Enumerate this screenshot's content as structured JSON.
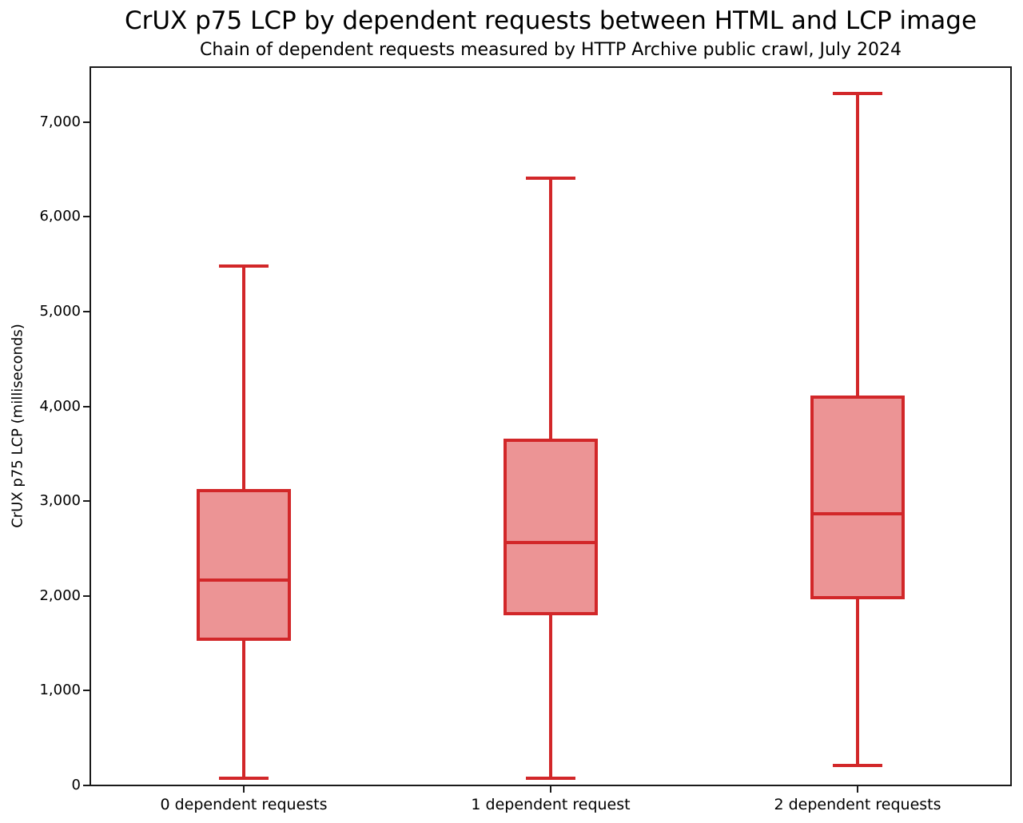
{
  "chart_data": {
    "type": "boxplot",
    "title": "CrUX p75 LCP by dependent requests between HTML and LCP image",
    "subtitle": "Chain of dependent requests measured by HTTP Archive public crawl, July 2024",
    "xlabel": "",
    "ylabel": "CrUX p75 LCP (milliseconds)",
    "unit": "milliseconds",
    "categories": [
      "0 dependent requests",
      "1 dependent request",
      "2 dependent requests"
    ],
    "series": [
      {
        "name": "0 dependent requests",
        "whisker_low": 80,
        "q1": 1540,
        "median": 2170,
        "q3": 3110,
        "whisker_high": 5480
      },
      {
        "name": "1 dependent request",
        "whisker_low": 75,
        "q1": 1810,
        "median": 2560,
        "q3": 3640,
        "whisker_high": 6410
      },
      {
        "name": "2 dependent requests",
        "whisker_low": 210,
        "q1": 1980,
        "median": 2870,
        "q3": 4100,
        "whisker_high": 7300
      }
    ],
    "ylim": [
      0,
      7580
    ],
    "yticks": [
      0,
      1000,
      2000,
      3000,
      4000,
      5000,
      6000,
      7000
    ],
    "ytick_labels": [
      "0",
      "1,000",
      "2,000",
      "3,000",
      "4,000",
      "5,000",
      "6,000",
      "7,000"
    ],
    "grid": false,
    "legend": null,
    "colors": {
      "box_edge": "#d22729",
      "box_fill": "#ec9495",
      "axis": "#1a1a1a",
      "text": "#000000"
    }
  }
}
